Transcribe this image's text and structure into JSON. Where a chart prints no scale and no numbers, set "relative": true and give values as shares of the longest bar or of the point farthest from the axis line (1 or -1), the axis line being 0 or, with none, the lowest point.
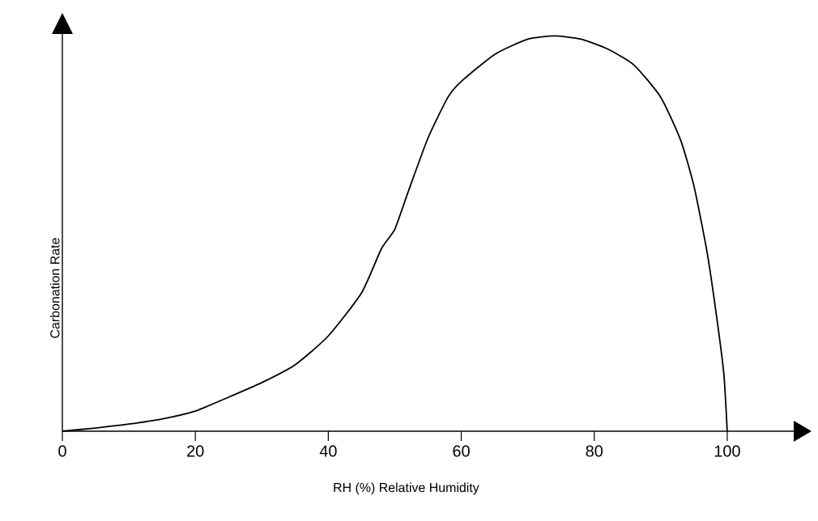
{
  "chart_data": {
    "type": "line",
    "relative": true,
    "xlabel": "RH (%) Relative Humidity",
    "ylabel": "Carbonation Rate",
    "xlim": [
      0,
      110
    ],
    "xticks": [
      0,
      20,
      40,
      60,
      80,
      100
    ],
    "marker": "none",
    "line_style": "solid",
    "series": [
      {
        "color": "#000000",
        "x": [
          0,
          5,
          10,
          15,
          20,
          25,
          30,
          35,
          40,
          45,
          48,
          50,
          52,
          55,
          58,
          60,
          65,
          70,
          74,
          78,
          82,
          86,
          90,
          93,
          95,
          97,
          98.5,
          99.5,
          100
        ],
        "values": [
          0,
          0.008,
          0.018,
          0.031,
          0.051,
          0.086,
          0.123,
          0.168,
          0.241,
          0.35,
          0.462,
          0.511,
          0.605,
          0.742,
          0.845,
          0.885,
          0.953,
          0.992,
          1.0,
          0.992,
          0.967,
          0.926,
          0.845,
          0.736,
          0.62,
          0.45,
          0.278,
          0.143,
          0
        ]
      }
    ]
  }
}
